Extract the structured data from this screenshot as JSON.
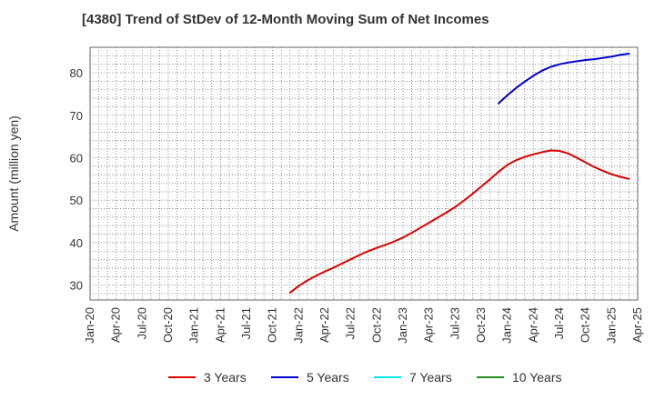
{
  "chart_data": {
    "type": "line",
    "title": "[4380]  Trend of StDev of 12-Month Moving Sum of Net Incomes",
    "xlabel": "",
    "ylabel": "Amount (million yen)",
    "x_ticks": [
      "Jan-20",
      "Apr-20",
      "Jul-20",
      "Oct-20",
      "Jan-21",
      "Apr-21",
      "Jul-21",
      "Oct-21",
      "Jan-22",
      "Apr-22",
      "Jul-22",
      "Oct-22",
      "Jan-23",
      "Apr-23",
      "Jul-23",
      "Oct-23",
      "Jan-24",
      "Apr-24",
      "Jul-24",
      "Oct-24",
      "Jan-25",
      "Apr-25"
    ],
    "y_ticks": [
      30,
      40,
      50,
      60,
      70,
      80
    ],
    "ylim": [
      26.5,
      86
    ],
    "grid": true,
    "legend_position": "bottom",
    "series": [
      {
        "name": "3 Years",
        "color": "#dd0000",
        "points": [
          [
            "Dec-21",
            28.2
          ],
          [
            "Jan-22",
            29.8
          ],
          [
            "Feb-22",
            31.1
          ],
          [
            "Mar-22",
            32.2
          ],
          [
            "Apr-22",
            33.2
          ],
          [
            "May-22",
            34.1
          ],
          [
            "Jun-22",
            35.1
          ],
          [
            "Jul-22",
            36.1
          ],
          [
            "Aug-22",
            37.1
          ],
          [
            "Sep-22",
            38.0
          ],
          [
            "Oct-22",
            38.8
          ],
          [
            "Nov-22",
            39.5
          ],
          [
            "Dec-22",
            40.3
          ],
          [
            "Jan-23",
            41.2
          ],
          [
            "Feb-23",
            42.3
          ],
          [
            "Mar-23",
            43.5
          ],
          [
            "Apr-23",
            44.7
          ],
          [
            "May-23",
            45.9
          ],
          [
            "Jun-23",
            47.1
          ],
          [
            "Jul-23",
            48.4
          ],
          [
            "Aug-23",
            49.9
          ],
          [
            "Sep-23",
            51.5
          ],
          [
            "Oct-23",
            53.2
          ],
          [
            "Nov-23",
            54.9
          ],
          [
            "Dec-23",
            56.7
          ],
          [
            "Jan-24",
            58.3
          ],
          [
            "Feb-24",
            59.4
          ],
          [
            "Mar-24",
            60.2
          ],
          [
            "Apr-24",
            60.8
          ],
          [
            "May-24",
            61.3
          ],
          [
            "Jun-24",
            61.7
          ],
          [
            "Jul-24",
            61.6
          ],
          [
            "Aug-24",
            61.0
          ],
          [
            "Sep-24",
            60.0
          ],
          [
            "Oct-24",
            58.9
          ],
          [
            "Nov-24",
            57.8
          ],
          [
            "Dec-24",
            56.9
          ],
          [
            "Jan-25",
            56.1
          ],
          [
            "Feb-25",
            55.5
          ],
          [
            "Mar-25",
            55.0
          ]
        ]
      },
      {
        "name": "5 Years",
        "color": "#0000cc",
        "points": [
          [
            "Dec-23",
            72.8
          ],
          [
            "Jan-24",
            74.7
          ],
          [
            "Feb-24",
            76.4
          ],
          [
            "Mar-24",
            77.9
          ],
          [
            "Apr-24",
            79.3
          ],
          [
            "May-24",
            80.5
          ],
          [
            "Jun-24",
            81.4
          ],
          [
            "Jul-24",
            82.0
          ],
          [
            "Aug-24",
            82.4
          ],
          [
            "Sep-24",
            82.7
          ],
          [
            "Oct-24",
            83.0
          ],
          [
            "Nov-24",
            83.2
          ],
          [
            "Dec-24",
            83.5
          ],
          [
            "Jan-25",
            83.8
          ],
          [
            "Feb-25",
            84.2
          ],
          [
            "Mar-25",
            84.5
          ]
        ]
      },
      {
        "name": "7 Years",
        "color": "#00e5ee",
        "points": []
      },
      {
        "name": "10 Years",
        "color": "#228b22",
        "points": []
      }
    ]
  }
}
